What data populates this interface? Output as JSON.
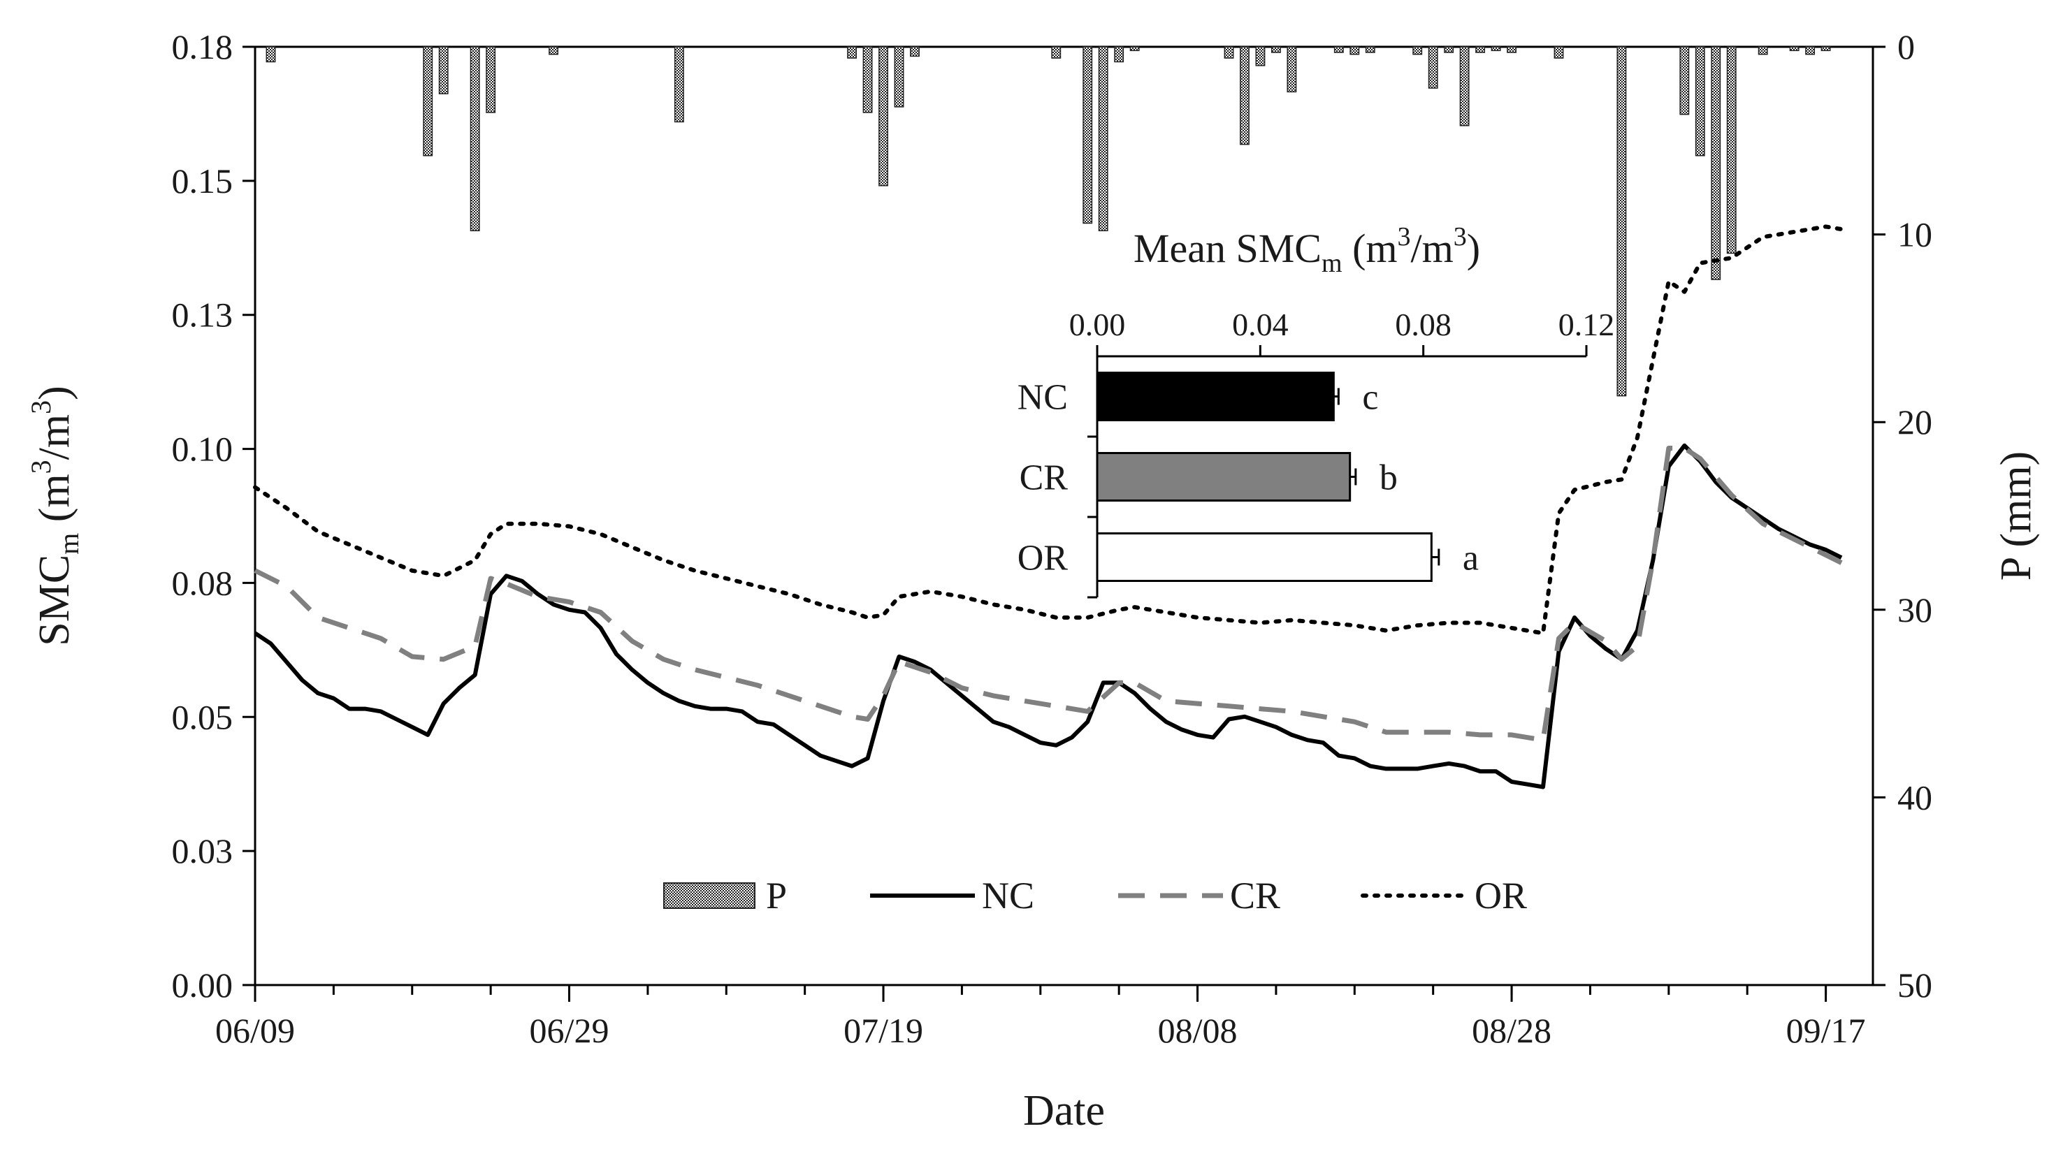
{
  "chart_data": [
    {
      "type": "line",
      "title": "",
      "xlabel": "Date",
      "ylabel": {
        "main": "SMC",
        "sub": "m",
        "units_open": " (m",
        "units_sup1": "3",
        "units_mid": "/m",
        "units_sup2": "3",
        "units_close": ")"
      },
      "y2label": "P (mm)",
      "x_tick_labels": [
        "06/09",
        "06/29",
        "07/19",
        "08/08",
        "08/28",
        "09/17"
      ],
      "x_tick_days": [
        0,
        20,
        40,
        60,
        80,
        100
      ],
      "x_minor_every_days": 5,
      "xlim": [
        0,
        103
      ],
      "ylim": [
        0,
        0.18
      ],
      "y_tick_labels": [
        "0.00",
        "0.03",
        "0.05",
        "0.08",
        "0.10",
        "0.13",
        "0.15",
        "0.18"
      ],
      "y2lim": [
        50,
        0
      ],
      "y2_tick_labels": [
        "0",
        "10",
        "20",
        "30",
        "40",
        "50"
      ],
      "legend": {
        "placement": "lower-center",
        "entries": [
          "P",
          "NC",
          "CR",
          "OR"
        ]
      },
      "series": [
        {
          "name": "NC",
          "style": "solid",
          "color": "#000000",
          "points": [
            [
              0,
              0.0675
            ],
            [
              1,
              0.0655
            ],
            [
              2,
              0.062
            ],
            [
              3,
              0.0585
            ],
            [
              4,
              0.056
            ],
            [
              5,
              0.055
            ],
            [
              6,
              0.053
            ],
            [
              7,
              0.053
            ],
            [
              8,
              0.0525
            ],
            [
              9,
              0.051
            ],
            [
              10,
              0.0495
            ],
            [
              11,
              0.048
            ],
            [
              12,
              0.054
            ],
            [
              13,
              0.057
            ],
            [
              14,
              0.0595
            ],
            [
              15,
              0.075
            ],
            [
              16,
              0.0785
            ],
            [
              17,
              0.0775
            ],
            [
              18,
              0.075
            ],
            [
              19,
              0.073
            ],
            [
              20,
              0.072
            ],
            [
              21,
              0.0715
            ],
            [
              22,
              0.0685
            ],
            [
              23,
              0.0635
            ],
            [
              24,
              0.0605
            ],
            [
              25,
              0.058
            ],
            [
              26,
              0.056
            ],
            [
              27,
              0.0545
            ],
            [
              28,
              0.0535
            ],
            [
              29,
              0.053
            ],
            [
              30,
              0.053
            ],
            [
              31,
              0.0525
            ],
            [
              32,
              0.0505
            ],
            [
              33,
              0.05
            ],
            [
              34,
              0.048
            ],
            [
              35,
              0.046
            ],
            [
              36,
              0.044
            ],
            [
              37,
              0.043
            ],
            [
              38,
              0.042
            ],
            [
              39,
              0.0435
            ],
            [
              40,
              0.0545
            ],
            [
              41,
              0.063
            ],
            [
              42,
              0.062
            ],
            [
              43,
              0.0605
            ],
            [
              44,
              0.058
            ],
            [
              45,
              0.0555
            ],
            [
              46,
              0.053
            ],
            [
              47,
              0.0505
            ],
            [
              48,
              0.0495
            ],
            [
              49,
              0.048
            ],
            [
              50,
              0.0465
            ],
            [
              51,
              0.046
            ],
            [
              52,
              0.0475
            ],
            [
              53,
              0.0505
            ],
            [
              54,
              0.058
            ],
            [
              55,
              0.058
            ],
            [
              56,
              0.056
            ],
            [
              57,
              0.053
            ],
            [
              58,
              0.0505
            ],
            [
              59,
              0.049
            ],
            [
              60,
              0.048
            ],
            [
              61,
              0.0475
            ],
            [
              62,
              0.051
            ],
            [
              63,
              0.0515
            ],
            [
              64,
              0.0505
            ],
            [
              65,
              0.0495
            ],
            [
              66,
              0.048
            ],
            [
              67,
              0.047
            ],
            [
              68,
              0.0465
            ],
            [
              69,
              0.044
            ],
            [
              70,
              0.0435
            ],
            [
              71,
              0.042
            ],
            [
              72,
              0.0415
            ],
            [
              73,
              0.0415
            ],
            [
              74,
              0.0415
            ],
            [
              75,
              0.042
            ],
            [
              76,
              0.0425
            ],
            [
              77,
              0.042
            ],
            [
              78,
              0.041
            ],
            [
              79,
              0.041
            ],
            [
              80,
              0.039
            ],
            [
              81,
              0.0385
            ],
            [
              82,
              0.038
            ],
            [
              83,
              0.064
            ],
            [
              84,
              0.0705
            ],
            [
              85,
              0.067
            ],
            [
              86,
              0.0645
            ],
            [
              87,
              0.0625
            ],
            [
              88,
              0.068
            ],
            [
              89,
              0.0815
            ],
            [
              90,
              0.0995
            ],
            [
              91,
              0.1035
            ],
            [
              92,
              0.1005
            ],
            [
              93,
              0.0965
            ],
            [
              94,
              0.0935
            ],
            [
              95,
              0.0915
            ],
            [
              96,
              0.0895
            ],
            [
              97,
              0.0875
            ],
            [
              98,
              0.086
            ],
            [
              99,
              0.0845
            ],
            [
              100,
              0.0835
            ],
            [
              101,
              0.082
            ]
          ]
        },
        {
          "name": "CR",
          "style": "dashed",
          "color": "#808080",
          "points": [
            [
              0,
              0.0795
            ],
            [
              2,
              0.0765
            ],
            [
              4,
              0.0705
            ],
            [
              6,
              0.0685
            ],
            [
              8,
              0.0665
            ],
            [
              10,
              0.063
            ],
            [
              12,
              0.0625
            ],
            [
              14,
              0.065
            ],
            [
              15,
              0.078
            ],
            [
              16,
              0.077
            ],
            [
              18,
              0.0745
            ],
            [
              20,
              0.0735
            ],
            [
              22,
              0.0715
            ],
            [
              24,
              0.066
            ],
            [
              26,
              0.0625
            ],
            [
              28,
              0.0605
            ],
            [
              30,
              0.059
            ],
            [
              32,
              0.0575
            ],
            [
              34,
              0.0555
            ],
            [
              36,
              0.0535
            ],
            [
              38,
              0.0515
            ],
            [
              39,
              0.051
            ],
            [
              40,
              0.0555
            ],
            [
              41,
              0.062
            ],
            [
              43,
              0.06
            ],
            [
              45,
              0.057
            ],
            [
              47,
              0.0555
            ],
            [
              49,
              0.0545
            ],
            [
              51,
              0.0535
            ],
            [
              53,
              0.0525
            ],
            [
              55,
              0.058
            ],
            [
              56,
              0.058
            ],
            [
              58,
              0.0545
            ],
            [
              60,
              0.054
            ],
            [
              62,
              0.0535
            ],
            [
              64,
              0.053
            ],
            [
              66,
              0.0525
            ],
            [
              68,
              0.0515
            ],
            [
              70,
              0.0505
            ],
            [
              72,
              0.0485
            ],
            [
              74,
              0.0485
            ],
            [
              76,
              0.0485
            ],
            [
              78,
              0.048
            ],
            [
              80,
              0.048
            ],
            [
              82,
              0.047
            ],
            [
              83,
              0.0665
            ],
            [
              84,
              0.0695
            ],
            [
              86,
              0.066
            ],
            [
              87,
              0.0625
            ],
            [
              88,
              0.065
            ],
            [
              89,
              0.0815
            ],
            [
              90,
              0.103
            ],
            [
              91,
              0.103
            ],
            [
              92,
              0.101
            ],
            [
              94,
              0.094
            ],
            [
              96,
              0.0885
            ],
            [
              98,
              0.0855
            ],
            [
              100,
              0.0825
            ],
            [
              101,
              0.081
            ]
          ]
        },
        {
          "name": "OR",
          "style": "dotted",
          "color": "#000000",
          "points": [
            [
              0,
              0.0955
            ],
            [
              2,
              0.0915
            ],
            [
              4,
              0.087
            ],
            [
              6,
              0.0845
            ],
            [
              8,
              0.082
            ],
            [
              10,
              0.0795
            ],
            [
              12,
              0.0785
            ],
            [
              14,
              0.0815
            ],
            [
              15,
              0.0865
            ],
            [
              16,
              0.0885
            ],
            [
              18,
              0.0885
            ],
            [
              20,
              0.088
            ],
            [
              22,
              0.0865
            ],
            [
              24,
              0.084
            ],
            [
              26,
              0.0815
            ],
            [
              28,
              0.0795
            ],
            [
              30,
              0.078
            ],
            [
              32,
              0.0765
            ],
            [
              34,
              0.075
            ],
            [
              36,
              0.073
            ],
            [
              38,
              0.0715
            ],
            [
              39,
              0.0705
            ],
            [
              40,
              0.071
            ],
            [
              41,
              0.0745
            ],
            [
              43,
              0.0755
            ],
            [
              45,
              0.0745
            ],
            [
              47,
              0.073
            ],
            [
              49,
              0.072
            ],
            [
              51,
              0.0705
            ],
            [
              53,
              0.0705
            ],
            [
              55,
              0.072
            ],
            [
              56,
              0.0725
            ],
            [
              58,
              0.0715
            ],
            [
              60,
              0.0705
            ],
            [
              62,
              0.07
            ],
            [
              64,
              0.0695
            ],
            [
              66,
              0.07
            ],
            [
              68,
              0.0695
            ],
            [
              70,
              0.069
            ],
            [
              72,
              0.068
            ],
            [
              74,
              0.069
            ],
            [
              76,
              0.0695
            ],
            [
              78,
              0.0695
            ],
            [
              80,
              0.0685
            ],
            [
              82,
              0.0675
            ],
            [
              83,
              0.0905
            ],
            [
              84,
              0.095
            ],
            [
              86,
              0.0965
            ],
            [
              87,
              0.097
            ],
            [
              88,
              0.105
            ],
            [
              89,
              0.12
            ],
            [
              90,
              0.135
            ],
            [
              91,
              0.133
            ],
            [
              92,
              0.1385
            ],
            [
              94,
              0.1395
            ],
            [
              95,
              0.1415
            ],
            [
              96,
              0.1435
            ],
            [
              98,
              0.1445
            ],
            [
              100,
              0.1455
            ],
            [
              101,
              0.145
            ]
          ]
        }
      ],
      "precipitation": {
        "name": "P",
        "axis": "right",
        "bars": [
          [
            1,
            0.8
          ],
          [
            11,
            5.8
          ],
          [
            12,
            2.5
          ],
          [
            14,
            9.8
          ],
          [
            15,
            3.5
          ],
          [
            19,
            0.4
          ],
          [
            27,
            4.0
          ],
          [
            38,
            0.6
          ],
          [
            39,
            3.5
          ],
          [
            40,
            7.4
          ],
          [
            41,
            3.2
          ],
          [
            42,
            0.5
          ],
          [
            51,
            0.6
          ],
          [
            53,
            9.4
          ],
          [
            54,
            9.8
          ],
          [
            55,
            0.8
          ],
          [
            56,
            0.2
          ],
          [
            62,
            0.6
          ],
          [
            63,
            5.2
          ],
          [
            64,
            1.0
          ],
          [
            65,
            0.3
          ],
          [
            66,
            2.4
          ],
          [
            69,
            0.3
          ],
          [
            70,
            0.4
          ],
          [
            71,
            0.3
          ],
          [
            74,
            0.4
          ],
          [
            75,
            2.2
          ],
          [
            76,
            0.3
          ],
          [
            77,
            4.2
          ],
          [
            78,
            0.3
          ],
          [
            79,
            0.2
          ],
          [
            80,
            0.3
          ],
          [
            83,
            0.6
          ],
          [
            87,
            18.6
          ],
          [
            91,
            3.6
          ],
          [
            92,
            5.8
          ],
          [
            93,
            12.4
          ],
          [
            94,
            11.0
          ],
          [
            96,
            0.4
          ],
          [
            98,
            0.2
          ],
          [
            99,
            0.4
          ],
          [
            100,
            0.2
          ]
        ]
      }
    },
    {
      "type": "bar",
      "orientation": "horizontal",
      "title": {
        "main": "Mean SMC",
        "sub": "m",
        "units_open": " (m",
        "units_sup1": "3",
        "units_mid": "/m",
        "units_sup2": "3",
        "units_close": ")"
      },
      "categories": [
        "NC",
        "CR",
        "OR"
      ],
      "values": [
        0.058,
        0.062,
        0.082
      ],
      "errors": [
        0.0012,
        0.0014,
        0.0018
      ],
      "colors": [
        "#000000",
        "#808080",
        "#ffffff"
      ],
      "significance_letters": [
        "c",
        "b",
        "a"
      ],
      "xlim": [
        0,
        0.12
      ],
      "x_tick_labels": [
        "0.00",
        "0.04",
        "0.08",
        "0.12"
      ],
      "axis_position": "top"
    }
  ]
}
